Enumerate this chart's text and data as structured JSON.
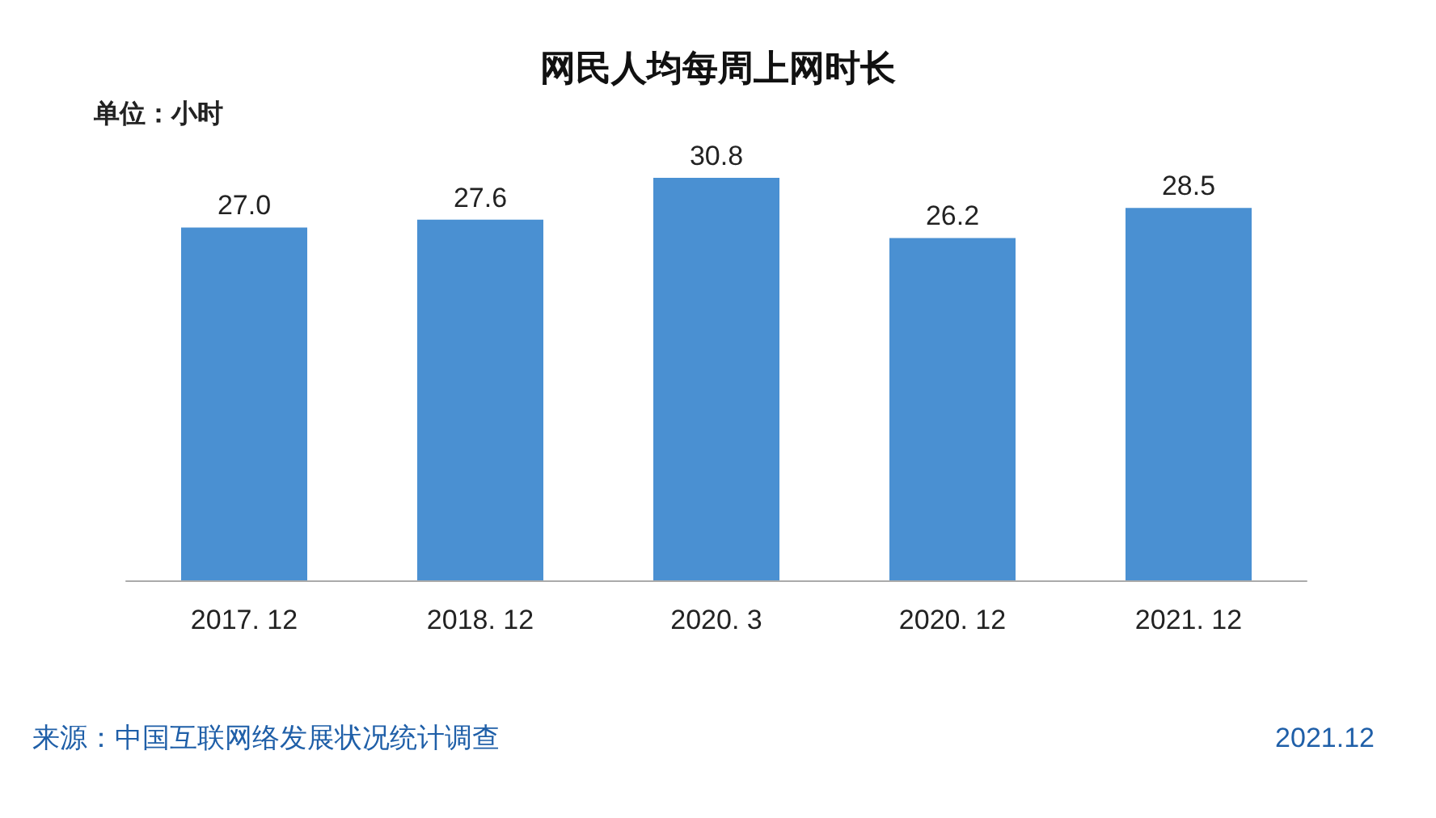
{
  "chart_data": {
    "type": "bar",
    "title": "网民人均每周上网时长",
    "categories": [
      "2017. 12",
      "2018. 12",
      "2020. 3",
      "2020. 12",
      "2021. 12"
    ],
    "values": [
      27.0,
      27.6,
      30.8,
      26.2,
      28.5
    ],
    "value_labels": [
      "27.0",
      "27.6",
      "30.8",
      "26.2",
      "28.5"
    ],
    "color": "#4a90d2",
    "annotations": [
      "单位：小时",
      "来源：中国互联网络发展状况统计调查",
      "2021.12"
    ]
  }
}
